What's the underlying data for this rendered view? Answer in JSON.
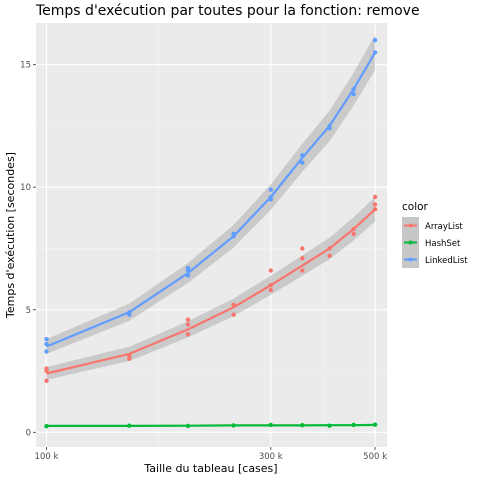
{
  "chart_data": {
    "type": "scatter",
    "title": "Temps d'exécution par toutes pour la fonction: remove",
    "xlabel": "Taille du tableau [cases]",
    "ylabel": "Temps d'exécution [secondes]",
    "x_scale": "log",
    "xlim": [
      95000,
      530000
    ],
    "ylim": [
      -0.6,
      16.7
    ],
    "x_ticks": [
      100000,
      300000,
      500000
    ],
    "x_tick_labels": [
      "100 k",
      "300 k",
      "500 k"
    ],
    "y_ticks": [
      0,
      5,
      10,
      15
    ],
    "y_tick_labels": [
      "0",
      "5",
      "10",
      "15"
    ],
    "grid": true,
    "legend_title": "color",
    "legend_position": "right",
    "series": [
      {
        "name": "ArrayList",
        "color": "#F8766D",
        "points": [
          [
            100000,
            2.6
          ],
          [
            100000,
            2.5
          ],
          [
            100000,
            2.1
          ],
          [
            150000,
            3.0
          ],
          [
            150000,
            3.1
          ],
          [
            200000,
            4.6
          ],
          [
            200000,
            4.4
          ],
          [
            200000,
            4.0
          ],
          [
            250000,
            5.2
          ],
          [
            250000,
            4.8
          ],
          [
            300000,
            6.6
          ],
          [
            300000,
            6.0
          ],
          [
            300000,
            5.8
          ],
          [
            350000,
            7.5
          ],
          [
            350000,
            7.1
          ],
          [
            350000,
            6.6
          ],
          [
            400000,
            7.5
          ],
          [
            400000,
            7.2
          ],
          [
            450000,
            8.3
          ],
          [
            450000,
            8.1
          ],
          [
            500000,
            9.6
          ],
          [
            500000,
            9.3
          ],
          [
            500000,
            9.1
          ]
        ],
        "fit": [
          [
            100000,
            2.4
          ],
          [
            150000,
            3.2
          ],
          [
            200000,
            4.2
          ],
          [
            250000,
            5.1
          ],
          [
            300000,
            6.0
          ],
          [
            350000,
            6.8
          ],
          [
            400000,
            7.5
          ],
          [
            450000,
            8.3
          ],
          [
            500000,
            9.1
          ]
        ]
      },
      {
        "name": "HashSet",
        "color": "#00BA38",
        "points": [
          [
            100000,
            0.25
          ],
          [
            150000,
            0.27
          ],
          [
            200000,
            0.26
          ],
          [
            250000,
            0.28
          ],
          [
            300000,
            0.3
          ],
          [
            350000,
            0.29
          ],
          [
            400000,
            0.27
          ],
          [
            450000,
            0.3
          ],
          [
            500000,
            0.31
          ]
        ],
        "fit": [
          [
            100000,
            0.26
          ],
          [
            150000,
            0.26
          ],
          [
            200000,
            0.27
          ],
          [
            250000,
            0.28
          ],
          [
            300000,
            0.28
          ],
          [
            350000,
            0.28
          ],
          [
            400000,
            0.29
          ],
          [
            450000,
            0.29
          ],
          [
            500000,
            0.3
          ]
        ]
      },
      {
        "name": "LinkedList",
        "color": "#619CFF",
        "points": [
          [
            100000,
            3.8
          ],
          [
            100000,
            3.6
          ],
          [
            100000,
            3.3
          ],
          [
            150000,
            4.8
          ],
          [
            150000,
            4.9
          ],
          [
            200000,
            6.7
          ],
          [
            200000,
            6.6
          ],
          [
            200000,
            6.4
          ],
          [
            250000,
            8.1
          ],
          [
            250000,
            8.0
          ],
          [
            300000,
            9.9
          ],
          [
            300000,
            9.6
          ],
          [
            300000,
            9.5
          ],
          [
            350000,
            11.3
          ],
          [
            350000,
            11.0
          ],
          [
            400000,
            12.5
          ],
          [
            400000,
            12.4
          ],
          [
            450000,
            14.0
          ],
          [
            450000,
            13.8
          ],
          [
            500000,
            16.0
          ],
          [
            500000,
            15.5
          ]
        ],
        "fit": [
          [
            100000,
            3.5
          ],
          [
            150000,
            4.9
          ],
          [
            200000,
            6.5
          ],
          [
            250000,
            8.0
          ],
          [
            300000,
            9.6
          ],
          [
            350000,
            11.2
          ],
          [
            400000,
            12.5
          ],
          [
            450000,
            14.0
          ],
          [
            500000,
            15.5
          ]
        ]
      }
    ]
  }
}
